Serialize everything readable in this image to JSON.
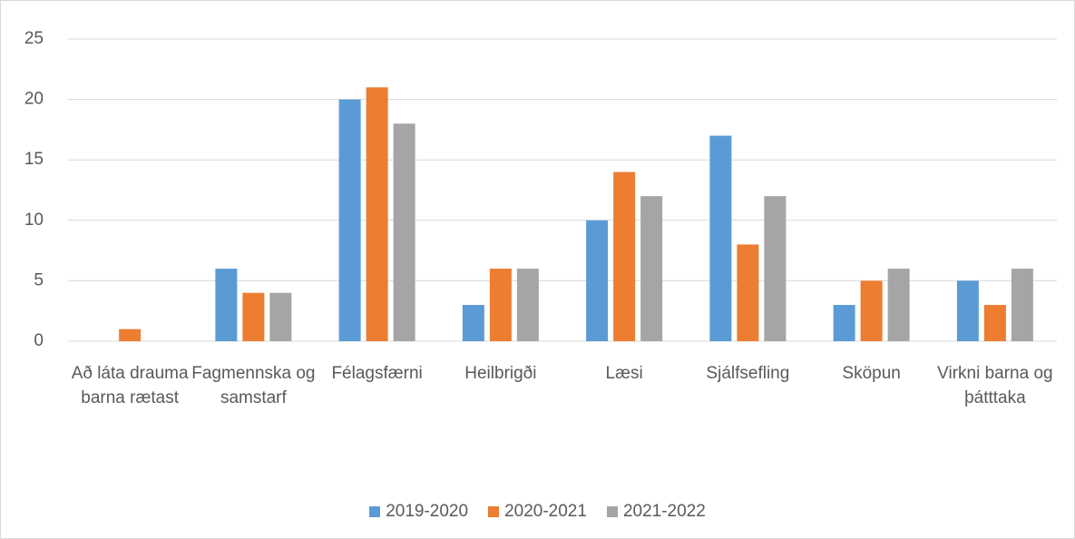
{
  "chart_data": {
    "type": "bar",
    "categories": [
      "Að láta drauma barna rætast",
      "Fagmennska og samstarf",
      "Félagsfærni",
      "Heilbrigði",
      "Læsi",
      "Sjálfsefling",
      "Sköpun",
      "Virkni barna og þátttaka"
    ],
    "series": [
      {
        "name": "2019-2020",
        "color": "#5b9bd5",
        "values": [
          0,
          6,
          20,
          3,
          10,
          17,
          3,
          5
        ]
      },
      {
        "name": "2020-2021",
        "color": "#ed7d31",
        "values": [
          1,
          4,
          21,
          6,
          14,
          8,
          5,
          3
        ]
      },
      {
        "name": "2021-2022",
        "color": "#a5a5a5",
        "values": [
          0,
          4,
          18,
          6,
          12,
          12,
          6,
          6
        ]
      }
    ],
    "ylim": [
      0,
      25
    ],
    "yticks": [
      0,
      5,
      10,
      15,
      20,
      25
    ],
    "grid": true,
    "legend": "bottom"
  }
}
